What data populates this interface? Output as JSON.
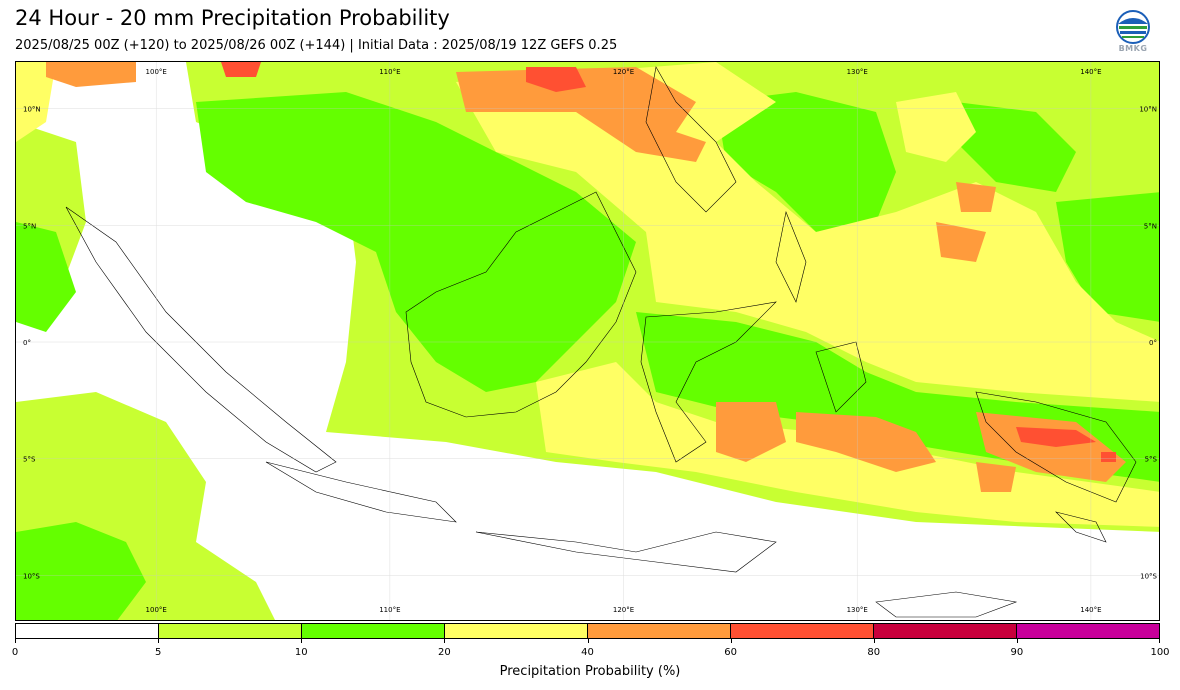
{
  "title": "24 Hour - 20 mm Precipitation Probability",
  "subtitle": "2025/08/25 00Z (+120) to 2025/08/26 00Z (+144) | Initial Data : 2025/08/19 12Z GEFS 0.25",
  "logo": {
    "text": "BMKG",
    "icon": "bmkg-logo"
  },
  "map": {
    "lon_range": [
      94.0,
      143.0
    ],
    "lat_range": [
      -12.0,
      12.0
    ],
    "lon_labels": [
      "100°E",
      "110°E",
      "120°E",
      "130°E",
      "140°E"
    ],
    "lat_labels": [
      "10°N",
      "5°N",
      "0°",
      "5°S",
      "10°S"
    ],
    "lon_values": [
      100,
      110,
      120,
      130,
      140
    ],
    "lat_values": [
      10,
      5,
      0,
      -5,
      -10
    ]
  },
  "colorbar": {
    "label": "Precipitation Probability (%)",
    "ticks": [
      "0",
      "5",
      "10",
      "20",
      "40",
      "60",
      "80",
      "90",
      "100"
    ],
    "colors": [
      "#ffffff",
      "#c8ff32",
      "#64ff00",
      "#ffff64",
      "#ff9b3c",
      "#ff5032",
      "#c8003c",
      "#c8009b"
    ]
  }
}
